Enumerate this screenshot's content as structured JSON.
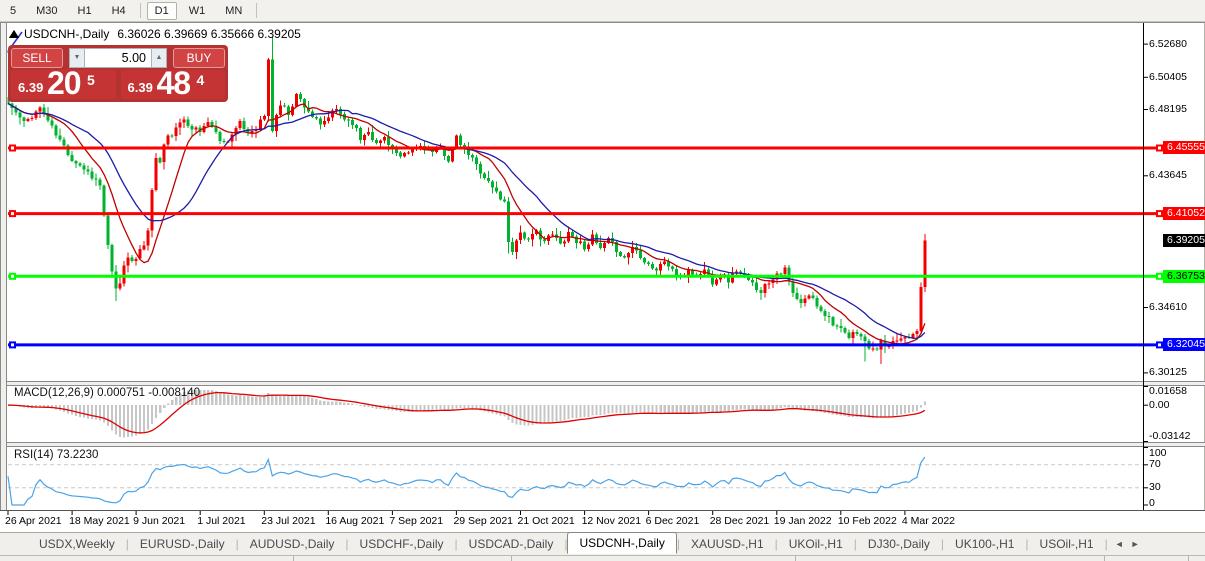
{
  "toolbar": {
    "timeframes": [
      "5",
      "M30",
      "H1",
      "H4",
      "D1",
      "W1",
      "MN"
    ],
    "active": "D1",
    "separators_after": [
      3,
      6
    ]
  },
  "chart_header": {
    "title": "USDCNH-,Daily",
    "ohlc_text": "6.36026 6.39669 6.35666 6.39205"
  },
  "trade_panel": {
    "sell_label": "SELL",
    "buy_label": "BUY",
    "volume": "5.00",
    "spinner_down_icon": "▼",
    "spinner_up_icon": "▲",
    "sell_price": {
      "small": "6.39",
      "big": "20",
      "sup": "5"
    },
    "buy_price": {
      "small": "6.39",
      "big": "48",
      "sup": "4"
    }
  },
  "indicators": {
    "macd_label": "MACD(12,26,9) 0.000751 -0.008140",
    "rsi_label": "RSI(14) 73.2230"
  },
  "date_axis": [
    "26 Apr 2021",
    "18 May 2021",
    "9 Jun 2021",
    "1 Jul 2021",
    "23 Jul 2021",
    "16 Aug 2021",
    "7 Sep 2021",
    "29 Sep 2021",
    "21 Oct 2021",
    "12 Nov 2021",
    "6 Dec 2021",
    "28 Dec 2021",
    "19 Jan 2022",
    "10 Feb 2022",
    "4 Mar 2022"
  ],
  "tabs": {
    "items": [
      "USDX,Weekly",
      "EURUSD-,Daily",
      "AUDUSD-,Daily",
      "USDCHF-,Daily",
      "USDCAD-,Daily",
      "USDCNH-,Daily",
      "XAUUSD-,H1",
      "UKOil-,H1",
      "DJ30-,Daily",
      "UK100-,H1",
      "USOil-,H1"
    ],
    "active": "USDCNH-,Daily",
    "separator": "|",
    "scroll_left_icon": "◄",
    "scroll_right_icon": "►"
  },
  "chart_data": {
    "type": "candlestick",
    "symbol": "USDCNH-",
    "timeframe": "Daily",
    "candle_count": 230,
    "seed": 11,
    "noise": 0.0022,
    "last_candle": [
      6.36026,
      6.39669,
      6.35666,
      6.39205
    ],
    "axis": {
      "price_top": 6.5406,
      "price_bottom": 6.2957,
      "ticks": [
        {
          "label": "6.52680",
          "price": 6.5268
        },
        {
          "label": "6.50405",
          "price": 6.50405
        },
        {
          "label": "6.48195",
          "price": 6.48195
        },
        {
          "label": "6.43645",
          "price": 6.43645
        },
        {
          "label": "6.34610",
          "price": 6.3461
        },
        {
          "label": "6.30125",
          "price": 6.30125
        }
      ]
    },
    "hlines": [
      {
        "price": 6.45555,
        "label": "6.45555",
        "color": "#ff0000",
        "text": "#ffffff"
      },
      {
        "price": 6.41052,
        "label": "6.41052",
        "color": "#ff0000",
        "text": "#ffffff"
      },
      {
        "price": 6.36753,
        "label": "6.36753",
        "color": "#00ff00",
        "text": "#000000"
      },
      {
        "price": 6.32045,
        "label": "6.32045",
        "color": "#0000ff",
        "text": "#ffffff"
      }
    ],
    "current_price": {
      "price": 6.39205,
      "label": "6.39205",
      "color": "#000000",
      "text": "#ffffff"
    },
    "ma_fast": {
      "period": 10,
      "color": "#c00000"
    },
    "ma_slow": {
      "period": 21,
      "color": "#1c1ca8"
    },
    "macd": {
      "fast": 12,
      "slow": 26,
      "signal": 9,
      "value": 0.000751,
      "signal_value": -0.00814,
      "axis_max": 0.01658,
      "axis_min": -0.03142,
      "axis_labels": [
        {
          "label": "0.01658",
          "v": 0.01658
        },
        {
          "label": "0.00",
          "v": 0
        },
        {
          "label": "-0.03142",
          "v": -0.03142
        }
      ]
    },
    "rsi": {
      "period": 14,
      "value": 73.223,
      "levels": [
        70,
        30
      ],
      "axis_labels": [
        {
          "label": "100",
          "v": 100
        },
        {
          "label": "70",
          "v": 70
        },
        {
          "label": "30",
          "v": 30
        },
        {
          "label": "0",
          "v": 0
        }
      ]
    },
    "date_tick_step": 16,
    "close_path": [
      [
        0,
        6.486
      ],
      [
        2,
        6.4795
      ],
      [
        4,
        6.4725
      ],
      [
        6,
        6.478
      ],
      [
        8,
        6.483
      ],
      [
        10,
        6.4745
      ],
      [
        12,
        6.4645
      ],
      [
        14,
        6.4565
      ],
      [
        16,
        6.448
      ],
      [
        18,
        6.444
      ],
      [
        20,
        6.439
      ],
      [
        22,
        6.4335
      ],
      [
        23,
        6.4295
      ],
      [
        24,
        6.4095
      ],
      [
        25,
        6.3875
      ],
      [
        26,
        6.3695
      ],
      [
        27,
        6.358
      ],
      [
        28,
        6.3635
      ],
      [
        29,
        6.3745
      ],
      [
        30,
        6.3815
      ],
      [
        32,
        6.3785
      ],
      [
        34,
        6.3895
      ],
      [
        35,
        6.4005
      ],
      [
        36,
        6.4255
      ],
      [
        37,
        6.4495
      ],
      [
        38,
        6.4455
      ],
      [
        39,
        6.4575
      ],
      [
        40,
        6.4625
      ],
      [
        42,
        6.468
      ],
      [
        44,
        6.4755
      ],
      [
        46,
        6.47
      ],
      [
        48,
        6.4665
      ],
      [
        50,
        6.4745
      ],
      [
        52,
        6.4655
      ],
      [
        54,
        6.459
      ],
      [
        56,
        6.465
      ],
      [
        58,
        6.472
      ],
      [
        60,
        6.466
      ],
      [
        62,
        6.47
      ],
      [
        64,
        6.478
      ],
      [
        65,
        6.515
      ],
      [
        66,
        6.468
      ],
      [
        67,
        6.478
      ],
      [
        68,
        6.4855
      ],
      [
        70,
        6.4795
      ],
      [
        72,
        6.492
      ],
      [
        74,
        6.485
      ],
      [
        76,
        6.4775
      ],
      [
        78,
        6.47
      ],
      [
        80,
        6.477
      ],
      [
        82,
        6.482
      ],
      [
        84,
        6.476
      ],
      [
        86,
        6.4735
      ],
      [
        88,
        6.462
      ],
      [
        90,
        6.468
      ],
      [
        92,
        6.458
      ],
      [
        94,
        6.463
      ],
      [
        96,
        6.4555
      ],
      [
        98,
        6.448
      ],
      [
        100,
        6.452
      ],
      [
        102,
        6.456
      ],
      [
        104,
        6.458
      ],
      [
        106,
        6.452
      ],
      [
        108,
        6.455
      ],
      [
        110,
        6.448
      ],
      [
        112,
        6.462
      ],
      [
        114,
        6.4545
      ],
      [
        116,
        6.448
      ],
      [
        118,
        6.44
      ],
      [
        120,
        6.432
      ],
      [
        122,
        6.425
      ],
      [
        124,
        6.418
      ],
      [
        125,
        6.392
      ],
      [
        126,
        6.386
      ],
      [
        128,
        6.398
      ],
      [
        130,
        6.3915
      ],
      [
        132,
        6.398
      ],
      [
        134,
        6.392
      ],
      [
        136,
        6.396
      ],
      [
        138,
        6.3895
      ],
      [
        140,
        6.398
      ],
      [
        142,
        6.392
      ],
      [
        144,
        6.388
      ],
      [
        146,
        6.394
      ],
      [
        148,
        6.386
      ],
      [
        150,
        6.392
      ],
      [
        152,
        6.386
      ],
      [
        154,
        6.38
      ],
      [
        156,
        6.388
      ],
      [
        158,
        6.382
      ],
      [
        160,
        6.376
      ],
      [
        162,
        6.372
      ],
      [
        164,
        6.378
      ],
      [
        166,
        6.372
      ],
      [
        168,
        6.366
      ],
      [
        170,
        6.372
      ],
      [
        172,
        6.368
      ],
      [
        174,
        6.372
      ],
      [
        176,
        6.364
      ],
      [
        178,
        6.37
      ],
      [
        180,
        6.365
      ],
      [
        182,
        6.372
      ],
      [
        184,
        6.366
      ],
      [
        186,
        6.362
      ],
      [
        188,
        6.358
      ],
      [
        190,
        6.364
      ],
      [
        192,
        6.37
      ],
      [
        194,
        6.372
      ],
      [
        196,
        6.355
      ],
      [
        198,
        6.348
      ],
      [
        200,
        6.355
      ],
      [
        202,
        6.348
      ],
      [
        204,
        6.342
      ],
      [
        206,
        6.336
      ],
      [
        208,
        6.33
      ],
      [
        210,
        6.325
      ],
      [
        212,
        6.33
      ],
      [
        214,
        6.322
      ],
      [
        216,
        6.316
      ],
      [
        218,
        6.322
      ],
      [
        220,
        6.318
      ],
      [
        222,
        6.324
      ],
      [
        224,
        6.326
      ],
      [
        226,
        6.328
      ],
      [
        227,
        6.33
      ],
      [
        228,
        6.3603
      ],
      [
        229,
        6.39205
      ]
    ],
    "wick_overrides": {
      "27": {
        "l": 6.3505
      },
      "66": {
        "h": 6.532
      },
      "125": {
        "l": 6.383
      },
      "214": {
        "l": 6.309
      },
      "218": {
        "l": 6.3075
      }
    },
    "colors": {
      "up": "#f20000",
      "down": "#00b22c",
      "macd_hist": "#c6c6c6",
      "macd_signal": "#e00000",
      "rsi": "#4aa3e8",
      "level_dashed": "#c8c8c8",
      "trendline": "#2a2ad0"
    }
  }
}
